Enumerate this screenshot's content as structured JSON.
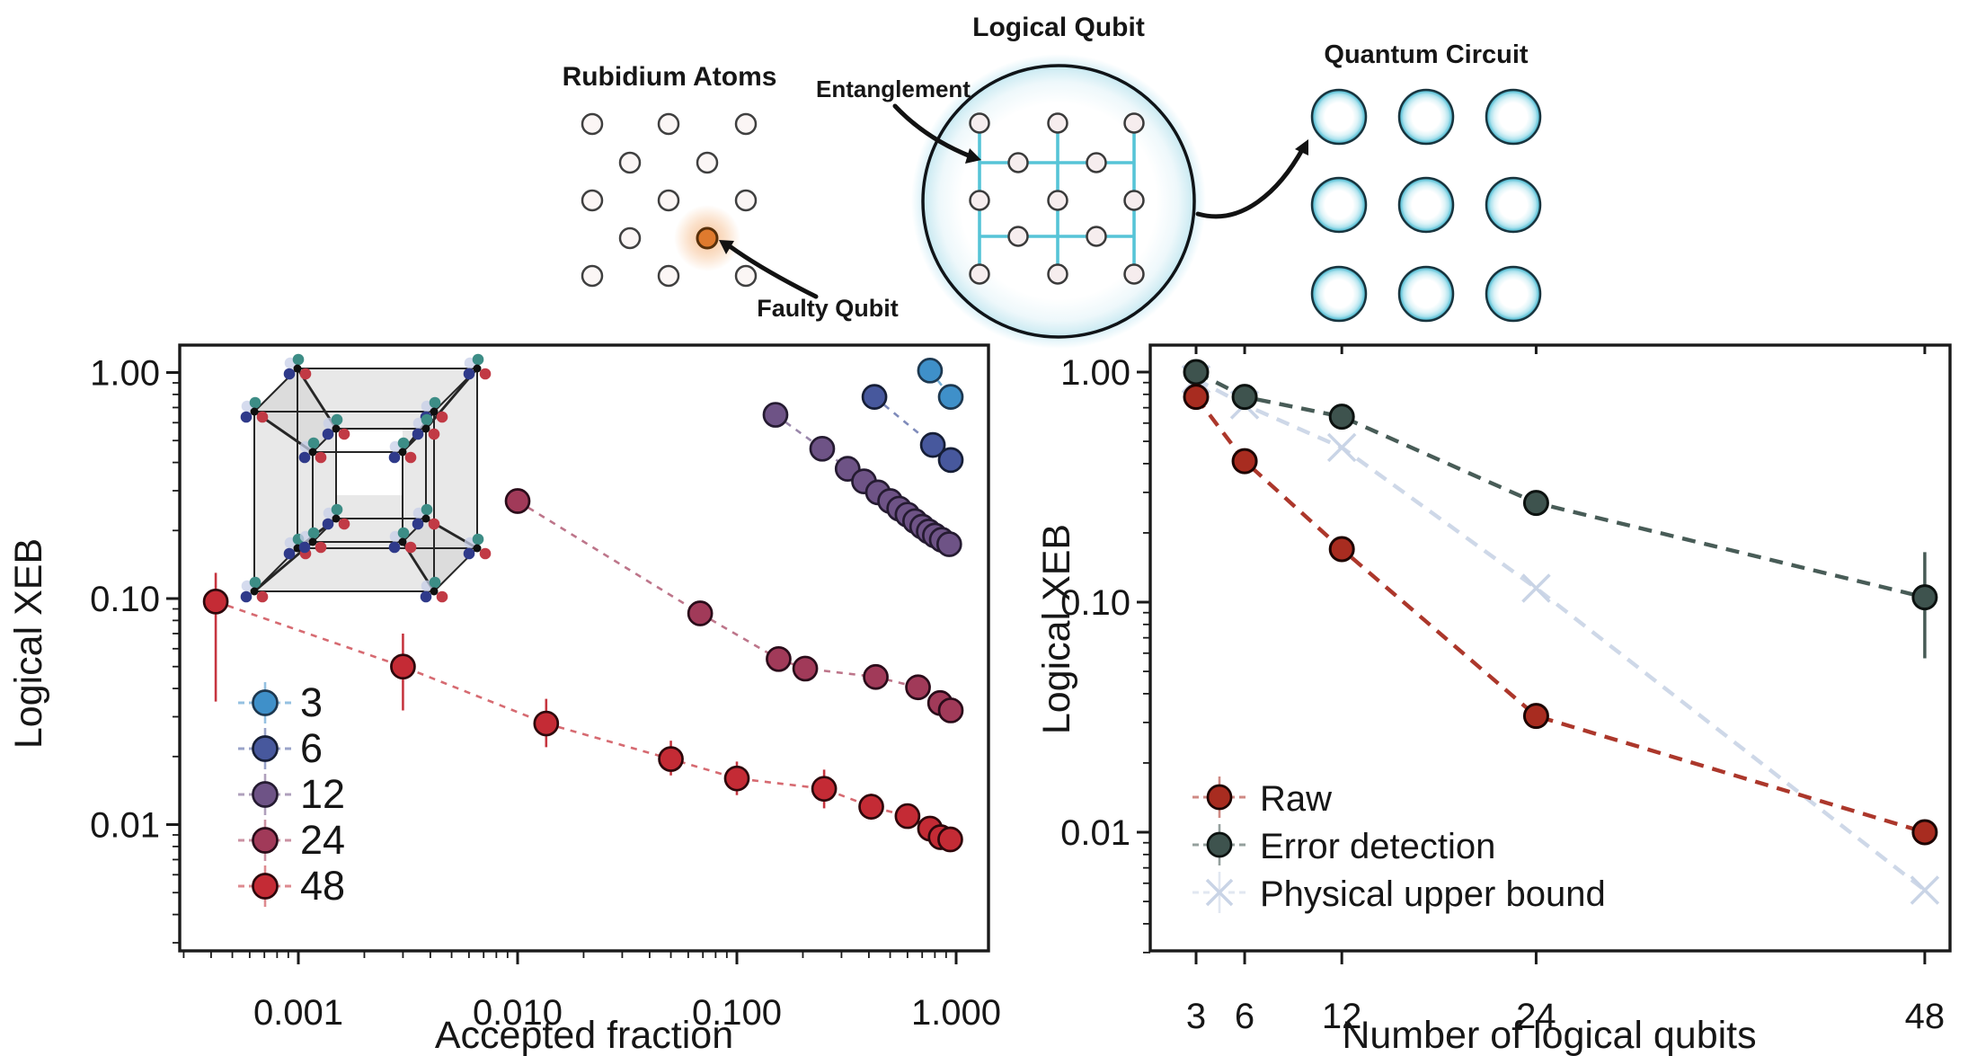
{
  "diagram": {
    "rubidium": {
      "title": "Rubidium Atoms",
      "faulty_label": "Faulty Qubit"
    },
    "logical": {
      "title": "Logical Qubit",
      "entanglement_label": "Entanglement"
    },
    "circuit": {
      "title": "Quantum Circuit"
    }
  },
  "colors": {
    "series_3": "#3f90c9",
    "series_6": "#47589d",
    "series_12": "#6e5386",
    "series_24": "#a13a59",
    "series_48": "#c42b35",
    "raw": "#a82c20",
    "error_detection": "#3e534e",
    "physical_upper_bound": "#c9d4e6",
    "cyan_link": "#56c4d7",
    "faulty_orange": "#df7a2e"
  },
  "chart_data": [
    {
      "type": "scatter",
      "title": "",
      "xlabel": "Accepted fraction",
      "ylabel": "Logical XEB",
      "xscale": "log",
      "yscale": "log",
      "xlim": [
        0.00029,
        1.4
      ],
      "ylim": [
        0.0028,
        1.33
      ],
      "xticks": [
        0.001,
        0.01,
        0.1,
        1.0
      ],
      "xtick_labels": [
        "0.001",
        "0.010",
        "0.100",
        "1.000"
      ],
      "yticks": [
        1.0,
        0.1,
        0.01
      ],
      "ytick_labels": [
        "1.00",
        "0.10",
        "0.01"
      ],
      "grid": false,
      "legend_position": "lower-left",
      "series": [
        {
          "name": "3",
          "color": "#3f90c9",
          "edge": "#1d3850",
          "marker": "circle",
          "x": [
            0.76,
            0.945
          ],
          "y": [
            1.02,
            0.78
          ]
        },
        {
          "name": "6",
          "color": "#47589d",
          "edge": "#161e36",
          "marker": "circle",
          "x": [
            0.424,
            0.783,
            0.945
          ],
          "y": [
            0.78,
            0.478,
            0.41
          ]
        },
        {
          "name": "12",
          "color": "#6e5386",
          "edge": "#251b31",
          "marker": "circle",
          "x": [
            0.15,
            0.245,
            0.32,
            0.38,
            0.44,
            0.5,
            0.55,
            0.6,
            0.65,
            0.7,
            0.75,
            0.8,
            0.86,
            0.93
          ],
          "y": [
            0.65,
            0.46,
            0.375,
            0.33,
            0.295,
            0.27,
            0.25,
            0.235,
            0.22,
            0.208,
            0.198,
            0.19,
            0.182,
            0.174
          ]
        },
        {
          "name": "24",
          "color": "#a13a59",
          "edge": "#2a0c1a",
          "marker": "circle",
          "x": [
            0.01,
            0.068,
            0.155,
            0.205,
            0.43,
            0.67,
            0.845,
            0.945
          ],
          "y": [
            0.27,
            0.086,
            0.054,
            0.049,
            0.045,
            0.0405,
            0.0345,
            0.032
          ]
        },
        {
          "name": "48",
          "color": "#c42b35",
          "edge": "#2d070b",
          "marker": "circle",
          "x": [
            0.00042,
            0.003,
            0.0135,
            0.05,
            0.1,
            0.25,
            0.41,
            0.6,
            0.76,
            0.85,
            0.94
          ],
          "y": [
            0.097,
            0.05,
            0.028,
            0.0195,
            0.016,
            0.0144,
            0.012,
            0.0109,
            0.0096,
            0.0088,
            0.0086
          ],
          "err_lo": [
            0.035,
            0.032,
            0.022,
            0.0165,
            0.0135,
            0.0118,
            0.0105,
            null,
            null,
            null,
            null
          ],
          "err_hi": [
            0.13,
            0.07,
            0.036,
            0.0235,
            0.019,
            0.0175,
            0.0137,
            null,
            null,
            null,
            null
          ]
        }
      ]
    },
    {
      "type": "scatter",
      "title": "",
      "xlabel": "Number of logical qubits",
      "ylabel": "Logical XEB",
      "xscale": "linear",
      "yscale": "log",
      "xlim": [
        0.2,
        49.6
      ],
      "ylim": [
        0.003,
        1.31
      ],
      "xticks": [
        3,
        6,
        12,
        24,
        48
      ],
      "xtick_labels": [
        "3",
        "6",
        "12",
        "24",
        "48"
      ],
      "yticks": [
        1.0,
        0.1,
        0.01
      ],
      "ytick_labels": [
        "1.00",
        "0.10",
        "0.01"
      ],
      "grid": false,
      "legend_position": "lower-left",
      "series": [
        {
          "name": "Raw",
          "color": "#a82c20",
          "edge": "#1c0402",
          "marker": "circle",
          "x": [
            3,
            6,
            12,
            24,
            48
          ],
          "y": [
            0.78,
            0.41,
            0.17,
            0.032,
            0.01
          ]
        },
        {
          "name": "Error detection",
          "color": "#3e534e",
          "edge": "#0c1210",
          "marker": "circle",
          "x": [
            3,
            6,
            12,
            24,
            48
          ],
          "y": [
            1.0,
            0.78,
            0.64,
            0.27,
            0.105
          ],
          "err_lo": [
            null,
            null,
            null,
            null,
            0.057
          ],
          "err_hi": [
            null,
            null,
            null,
            null,
            0.165
          ]
        },
        {
          "name": "Physical upper bound",
          "color": "#c9d4e6",
          "edge": "#c9d4e6",
          "marker": "x",
          "x": [
            3,
            6,
            12,
            24,
            48
          ],
          "y": [
            0.93,
            0.72,
            0.47,
            0.115,
            0.0056
          ]
        }
      ]
    }
  ]
}
